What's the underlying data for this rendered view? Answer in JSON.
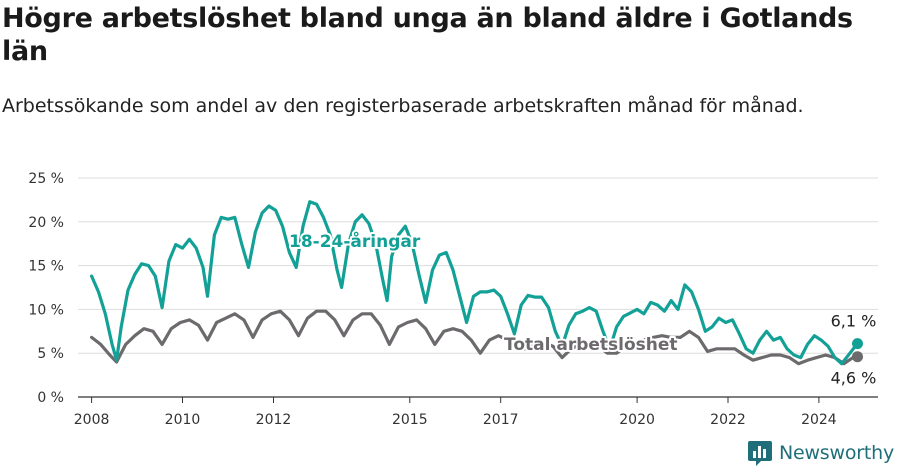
{
  "title": "Högre arbetslöshet bland unga än bland äldre i Gotlands län",
  "subtitle": "Arbetssökande som andel av den registerbaserade arbetskraften månad för månad.",
  "brand": {
    "name": "Newsworthy",
    "icon": "newsworthy-logo-icon"
  },
  "colors": {
    "youth": "#13a197",
    "total": "#6d6a6e",
    "grid": "#dddddd",
    "axis": "#333333"
  },
  "chart_data": {
    "type": "line",
    "x_unit": "year",
    "x_ticks": [
      "2008",
      "2010",
      "2012",
      "2015",
      "2017",
      "2020",
      "2022",
      "2024"
    ],
    "y_ticks": [
      "0 %",
      "5 %",
      "10 %",
      "15 %",
      "20 %",
      "25 %"
    ],
    "ylim": [
      0,
      25
    ],
    "xlim": [
      2007.7,
      2025.3
    ],
    "grid": true,
    "series": [
      {
        "name": "18-24-åringar",
        "color": "#13a197",
        "end_label": "6,1 %",
        "points": [
          [
            2008.0,
            13.8
          ],
          [
            2008.15,
            12.0
          ],
          [
            2008.3,
            9.5
          ],
          [
            2008.45,
            6.0
          ],
          [
            2008.55,
            4.2
          ],
          [
            2008.65,
            8.0
          ],
          [
            2008.8,
            12.2
          ],
          [
            2008.95,
            14.0
          ],
          [
            2009.1,
            15.2
          ],
          [
            2009.25,
            15.0
          ],
          [
            2009.4,
            13.8
          ],
          [
            2009.55,
            10.2
          ],
          [
            2009.7,
            15.5
          ],
          [
            2009.85,
            17.4
          ],
          [
            2010.0,
            17.0
          ],
          [
            2010.15,
            18.0
          ],
          [
            2010.3,
            17.0
          ],
          [
            2010.45,
            14.8
          ],
          [
            2010.55,
            11.5
          ],
          [
            2010.7,
            18.5
          ],
          [
            2010.85,
            20.5
          ],
          [
            2011.0,
            20.3
          ],
          [
            2011.15,
            20.5
          ],
          [
            2011.3,
            17.5
          ],
          [
            2011.45,
            14.8
          ],
          [
            2011.6,
            18.8
          ],
          [
            2011.75,
            21.0
          ],
          [
            2011.9,
            21.8
          ],
          [
            2012.05,
            21.3
          ],
          [
            2012.2,
            19.5
          ],
          [
            2012.35,
            16.5
          ],
          [
            2012.5,
            14.8
          ],
          [
            2012.65,
            19.5
          ],
          [
            2012.8,
            22.3
          ],
          [
            2012.95,
            22.0
          ],
          [
            2013.1,
            20.5
          ],
          [
            2013.25,
            18.5
          ],
          [
            2013.4,
            14.5
          ],
          [
            2013.5,
            12.5
          ],
          [
            2013.65,
            17.5
          ],
          [
            2013.8,
            20.0
          ],
          [
            2013.95,
            20.8
          ],
          [
            2014.1,
            19.8
          ],
          [
            2014.25,
            17.5
          ],
          [
            2014.4,
            13.5
          ],
          [
            2014.5,
            11.0
          ],
          [
            2014.6,
            16.0
          ],
          [
            2014.75,
            18.5
          ],
          [
            2014.9,
            19.5
          ],
          [
            2015.05,
            17.5
          ],
          [
            2015.2,
            14.0
          ],
          [
            2015.35,
            10.8
          ],
          [
            2015.5,
            14.5
          ],
          [
            2015.65,
            16.2
          ],
          [
            2015.8,
            16.5
          ],
          [
            2015.95,
            14.5
          ],
          [
            2016.1,
            11.5
          ],
          [
            2016.25,
            8.5
          ],
          [
            2016.4,
            11.5
          ],
          [
            2016.55,
            12.0
          ],
          [
            2016.7,
            12.0
          ],
          [
            2016.85,
            12.2
          ],
          [
            2017.0,
            11.5
          ],
          [
            2017.15,
            9.5
          ],
          [
            2017.3,
            7.2
          ],
          [
            2017.45,
            10.5
          ],
          [
            2017.6,
            11.6
          ],
          [
            2017.75,
            11.4
          ],
          [
            2017.9,
            11.4
          ],
          [
            2018.05,
            10.2
          ],
          [
            2018.2,
            7.5
          ],
          [
            2018.35,
            5.8
          ],
          [
            2018.5,
            8.2
          ],
          [
            2018.65,
            9.5
          ],
          [
            2018.8,
            9.8
          ],
          [
            2018.95,
            10.2
          ],
          [
            2019.1,
            9.8
          ],
          [
            2019.25,
            7.5
          ],
          [
            2019.4,
            5.5
          ],
          [
            2019.55,
            8.0
          ],
          [
            2019.7,
            9.2
          ],
          [
            2019.85,
            9.6
          ],
          [
            2020.0,
            10.0
          ],
          [
            2020.15,
            9.5
          ],
          [
            2020.3,
            10.8
          ],
          [
            2020.45,
            10.5
          ],
          [
            2020.6,
            9.8
          ],
          [
            2020.75,
            11.0
          ],
          [
            2020.9,
            10.0
          ],
          [
            2021.05,
            12.8
          ],
          [
            2021.2,
            12.0
          ],
          [
            2021.35,
            10.0
          ],
          [
            2021.5,
            7.5
          ],
          [
            2021.65,
            8.0
          ],
          [
            2021.8,
            9.0
          ],
          [
            2021.95,
            8.5
          ],
          [
            2022.1,
            8.8
          ],
          [
            2022.25,
            7.2
          ],
          [
            2022.4,
            5.5
          ],
          [
            2022.55,
            5.0
          ],
          [
            2022.7,
            6.5
          ],
          [
            2022.85,
            7.5
          ],
          [
            2023.0,
            6.5
          ],
          [
            2023.15,
            6.8
          ],
          [
            2023.3,
            5.5
          ],
          [
            2023.45,
            4.8
          ],
          [
            2023.6,
            4.5
          ],
          [
            2023.75,
            6.0
          ],
          [
            2023.9,
            7.0
          ],
          [
            2024.05,
            6.5
          ],
          [
            2024.2,
            5.8
          ],
          [
            2024.35,
            4.5
          ],
          [
            2024.5,
            3.8
          ],
          [
            2024.65,
            4.8
          ],
          [
            2024.8,
            5.8
          ],
          [
            2024.85,
            6.1
          ]
        ]
      },
      {
        "name": "Total arbetslöshet",
        "color": "#6d6a6e",
        "end_label": "4,6 %",
        "points": [
          [
            2008.0,
            6.8
          ],
          [
            2008.2,
            6.0
          ],
          [
            2008.4,
            4.8
          ],
          [
            2008.55,
            4.0
          ],
          [
            2008.75,
            6.0
          ],
          [
            2008.95,
            7.0
          ],
          [
            2009.15,
            7.8
          ],
          [
            2009.35,
            7.5
          ],
          [
            2009.55,
            6.0
          ],
          [
            2009.75,
            7.8
          ],
          [
            2009.95,
            8.5
          ],
          [
            2010.15,
            8.8
          ],
          [
            2010.35,
            8.2
          ],
          [
            2010.55,
            6.5
          ],
          [
            2010.75,
            8.5
          ],
          [
            2010.95,
            9.0
          ],
          [
            2011.15,
            9.5
          ],
          [
            2011.35,
            8.8
          ],
          [
            2011.55,
            6.8
          ],
          [
            2011.75,
            8.8
          ],
          [
            2011.95,
            9.5
          ],
          [
            2012.15,
            9.8
          ],
          [
            2012.35,
            8.8
          ],
          [
            2012.55,
            7.0
          ],
          [
            2012.75,
            9.0
          ],
          [
            2012.95,
            9.8
          ],
          [
            2013.15,
            9.8
          ],
          [
            2013.35,
            8.8
          ],
          [
            2013.55,
            7.0
          ],
          [
            2013.75,
            8.8
          ],
          [
            2013.95,
            9.5
          ],
          [
            2014.15,
            9.5
          ],
          [
            2014.35,
            8.2
          ],
          [
            2014.55,
            6.0
          ],
          [
            2014.75,
            8.0
          ],
          [
            2014.95,
            8.5
          ],
          [
            2015.15,
            8.8
          ],
          [
            2015.35,
            7.8
          ],
          [
            2015.55,
            6.0
          ],
          [
            2015.75,
            7.5
          ],
          [
            2015.95,
            7.8
          ],
          [
            2016.15,
            7.5
          ],
          [
            2016.35,
            6.5
          ],
          [
            2016.55,
            5.0
          ],
          [
            2016.75,
            6.5
          ],
          [
            2016.95,
            7.0
          ],
          [
            2017.15,
            6.5
          ],
          [
            2017.35,
            5.5
          ],
          [
            2017.55,
            5.5
          ],
          [
            2017.75,
            6.2
          ],
          [
            2017.95,
            6.2
          ],
          [
            2018.15,
            5.8
          ],
          [
            2018.35,
            4.5
          ],
          [
            2018.55,
            5.5
          ],
          [
            2018.75,
            6.0
          ],
          [
            2018.95,
            6.0
          ],
          [
            2019.15,
            5.8
          ],
          [
            2019.35,
            5.0
          ],
          [
            2019.55,
            5.0
          ],
          [
            2019.75,
            5.8
          ],
          [
            2019.95,
            6.2
          ],
          [
            2020.15,
            6.5
          ],
          [
            2020.35,
            6.8
          ],
          [
            2020.55,
            7.0
          ],
          [
            2020.75,
            6.8
          ],
          [
            2020.95,
            6.8
          ],
          [
            2021.15,
            7.5
          ],
          [
            2021.35,
            6.8
          ],
          [
            2021.55,
            5.2
          ],
          [
            2021.75,
            5.5
          ],
          [
            2021.95,
            5.5
          ],
          [
            2022.15,
            5.5
          ],
          [
            2022.35,
            4.8
          ],
          [
            2022.55,
            4.2
          ],
          [
            2022.75,
            4.5
          ],
          [
            2022.95,
            4.8
          ],
          [
            2023.15,
            4.8
          ],
          [
            2023.35,
            4.5
          ],
          [
            2023.55,
            3.8
          ],
          [
            2023.75,
            4.2
          ],
          [
            2023.95,
            4.5
          ],
          [
            2024.15,
            4.8
          ],
          [
            2024.35,
            4.5
          ],
          [
            2024.55,
            3.8
          ],
          [
            2024.75,
            4.5
          ],
          [
            2024.85,
            4.6
          ]
        ]
      }
    ]
  }
}
